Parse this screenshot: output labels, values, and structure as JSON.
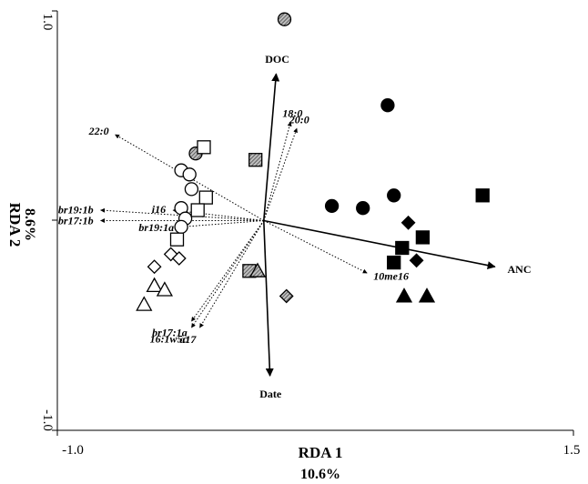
{
  "chart_data": {
    "type": "scatter",
    "title": "",
    "xlabel": "RDA 1",
    "x_explained": "10.6%",
    "ylabel": "RDA 2",
    "y_explained": "8.6%",
    "xlim": [
      -1.0,
      1.5
    ],
    "ylim": [
      -1.0,
      1.0
    ],
    "x_tick_labels": [
      {
        "value": -1.0,
        "label": "-1.0"
      },
      {
        "value": 1.5,
        "label": "1.5"
      }
    ],
    "y_tick_labels": [
      {
        "value": 1.0,
        "label": "1.0"
      },
      {
        "value": -1.0,
        "label": "-1.0"
      }
    ],
    "grid": false,
    "legend": "none",
    "colors": {
      "axes": "#000000",
      "hatched_fill": "#8a8a8a"
    },
    "environmental_vectors": [
      {
        "label": "DOC",
        "x": 0.06,
        "y": 0.7
      },
      {
        "label": "ANC",
        "x": 1.12,
        "y": -0.22
      },
      {
        "label": "Date",
        "x": 0.03,
        "y": -0.74
      }
    ],
    "fatty_acid_vectors": [
      {
        "label": "18:0",
        "x": 0.13,
        "y": 0.47
      },
      {
        "label": "20:0",
        "x": 0.16,
        "y": 0.44
      },
      {
        "label": "22:0",
        "x": -0.72,
        "y": 0.41
      },
      {
        "label": "i16",
        "x": -0.44,
        "y": 0.05
      },
      {
        "label": "br19:1b",
        "x": -0.79,
        "y": 0.05
      },
      {
        "label": "br17:1b",
        "x": -0.79,
        "y": 0.0
      },
      {
        "label": "br19:1a",
        "x": -0.4,
        "y": -0.03
      },
      {
        "label": "10me16",
        "x": 0.5,
        "y": -0.25
      },
      {
        "label": "br17:1a",
        "x": -0.35,
        "y": -0.48
      },
      {
        "label": "16:1w5c",
        "x": -0.35,
        "y": -0.51
      },
      {
        "label": "a17",
        "x": -0.31,
        "y": -0.51
      }
    ],
    "samples": [
      {
        "shape": "circle",
        "fill": "black",
        "x": 0.6,
        "y": 0.55
      },
      {
        "shape": "circle",
        "fill": "black",
        "x": 0.33,
        "y": 0.07
      },
      {
        "shape": "circle",
        "fill": "black",
        "x": 0.48,
        "y": 0.06
      },
      {
        "shape": "circle",
        "fill": "black",
        "x": 0.63,
        "y": 0.12
      },
      {
        "shape": "circle",
        "fill": "hatched",
        "x": 0.1,
        "y": 0.96
      },
      {
        "shape": "circle",
        "fill": "hatched",
        "x": -0.33,
        "y": 0.32
      },
      {
        "shape": "circle",
        "fill": "open",
        "x": -0.4,
        "y": 0.24
      },
      {
        "shape": "circle",
        "fill": "open",
        "x": -0.36,
        "y": 0.22
      },
      {
        "shape": "circle",
        "fill": "open",
        "x": -0.35,
        "y": 0.15
      },
      {
        "shape": "circle",
        "fill": "open",
        "x": -0.4,
        "y": 0.06
      },
      {
        "shape": "circle",
        "fill": "open",
        "x": -0.38,
        "y": 0.01
      },
      {
        "shape": "circle",
        "fill": "open",
        "x": -0.4,
        "y": -0.03
      },
      {
        "shape": "square",
        "fill": "black",
        "x": 1.06,
        "y": 0.12
      },
      {
        "shape": "square",
        "fill": "black",
        "x": 0.77,
        "y": -0.08
      },
      {
        "shape": "square",
        "fill": "black",
        "x": 0.67,
        "y": -0.13
      },
      {
        "shape": "square",
        "fill": "black",
        "x": 0.63,
        "y": -0.2
      },
      {
        "shape": "square",
        "fill": "hatched",
        "x": -0.04,
        "y": 0.29
      },
      {
        "shape": "square",
        "fill": "hatched",
        "x": -0.07,
        "y": -0.24
      },
      {
        "shape": "square",
        "fill": "open",
        "x": -0.29,
        "y": 0.35
      },
      {
        "shape": "square",
        "fill": "open",
        "x": -0.28,
        "y": 0.11
      },
      {
        "shape": "square",
        "fill": "open",
        "x": -0.32,
        "y": 0.05
      },
      {
        "shape": "square",
        "fill": "open",
        "x": -0.42,
        "y": -0.09
      },
      {
        "shape": "diamond",
        "fill": "black",
        "x": 0.7,
        "y": -0.01
      },
      {
        "shape": "diamond",
        "fill": "black",
        "x": 0.74,
        "y": -0.19
      },
      {
        "shape": "diamond",
        "fill": "hatched",
        "x": 0.11,
        "y": -0.36
      },
      {
        "shape": "diamond",
        "fill": "open",
        "x": -0.53,
        "y": -0.22
      },
      {
        "shape": "diamond",
        "fill": "open",
        "x": -0.45,
        "y": -0.16
      },
      {
        "shape": "diamond",
        "fill": "open",
        "x": -0.41,
        "y": -0.18
      },
      {
        "shape": "triangle",
        "fill": "black",
        "x": 0.68,
        "y": -0.36
      },
      {
        "shape": "triangle",
        "fill": "black",
        "x": 0.79,
        "y": -0.36
      },
      {
        "shape": "triangle",
        "fill": "hatched",
        "x": -0.03,
        "y": -0.24
      },
      {
        "shape": "triangle",
        "fill": "open",
        "x": -0.53,
        "y": -0.31
      },
      {
        "shape": "triangle",
        "fill": "open",
        "x": -0.48,
        "y": -0.33
      },
      {
        "shape": "triangle",
        "fill": "open",
        "x": -0.58,
        "y": -0.4
      }
    ]
  }
}
